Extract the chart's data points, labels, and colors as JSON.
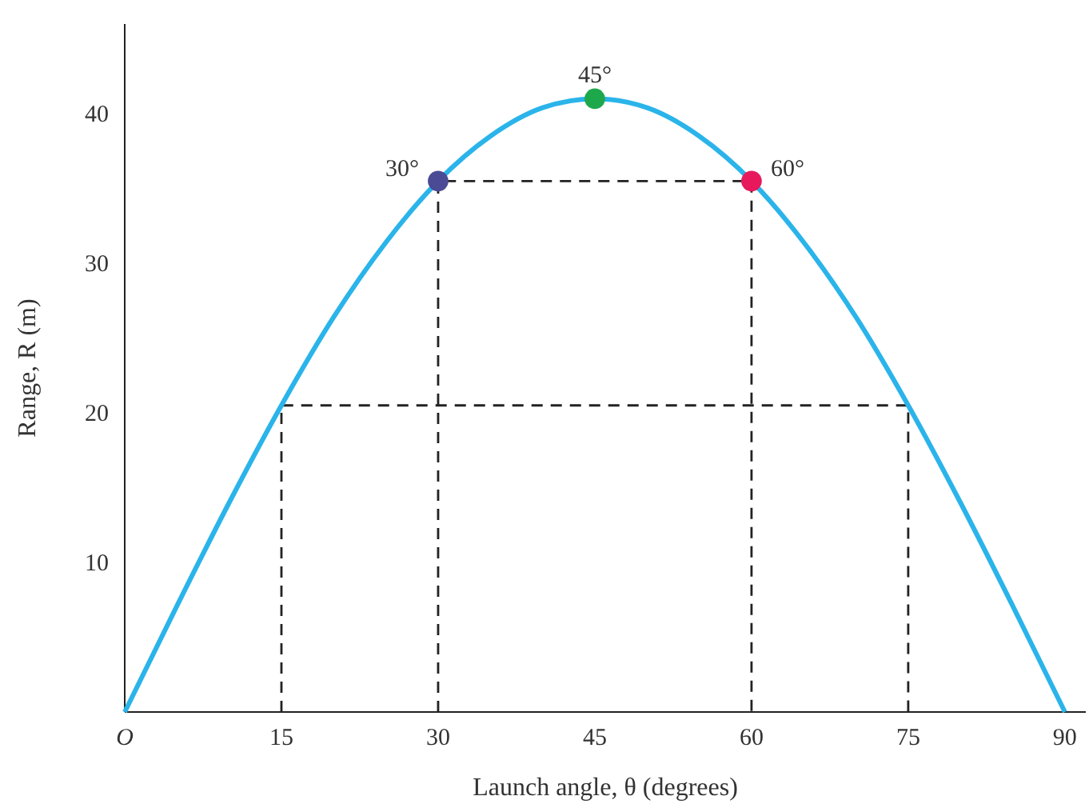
{
  "chart_data": {
    "type": "line",
    "xlabel": "Launch angle, θ (degrees)",
    "ylabel": "Range, R (m)",
    "xlim": [
      0,
      92
    ],
    "ylim": [
      0,
      46
    ],
    "xticks": [
      {
        "value": 0,
        "label": "O"
      },
      15,
      30,
      45,
      60,
      75,
      90
    ],
    "yticks": [
      10,
      20,
      30,
      40
    ],
    "series": [
      {
        "color": "#2ab4ea",
        "x": [
          0,
          5,
          10,
          15,
          20,
          25,
          30,
          35,
          40,
          45,
          50,
          55,
          60,
          65,
          70,
          75,
          80,
          85,
          90
        ],
        "values": [
          0,
          7.1,
          14.0,
          20.5,
          26.4,
          31.4,
          35.5,
          38.5,
          40.4,
          41,
          40.4,
          38.5,
          35.5,
          31.4,
          26.4,
          20.5,
          14.0,
          7.1,
          0
        ]
      },
      {
        "type": "line",
        "color": "#222222",
        "line_style": "dashed",
        "x": [
          15,
          15,
          75,
          75
        ],
        "values": [
          0,
          20.5,
          20.5,
          0
        ]
      },
      {
        "type": "line",
        "color": "#222222",
        "line_style": "dashed",
        "x": [
          30,
          30,
          60,
          60
        ],
        "values": [
          0,
          35.5,
          35.5,
          0
        ]
      },
      {
        "type": "scatter",
        "marker": "circle",
        "x": [
          30,
          45,
          60
        ],
        "values": [
          35.5,
          41,
          35.5
        ],
        "colors": [
          "#4b4a94",
          "#1ea84c",
          "#e8185c"
        ]
      }
    ],
    "annotations": [
      {
        "text": "30°",
        "x": 30,
        "y": 35.5
      },
      {
        "text": "45°",
        "x": 45,
        "y": 41
      },
      {
        "text": "60°",
        "x": 60,
        "y": 35.5
      }
    ]
  }
}
